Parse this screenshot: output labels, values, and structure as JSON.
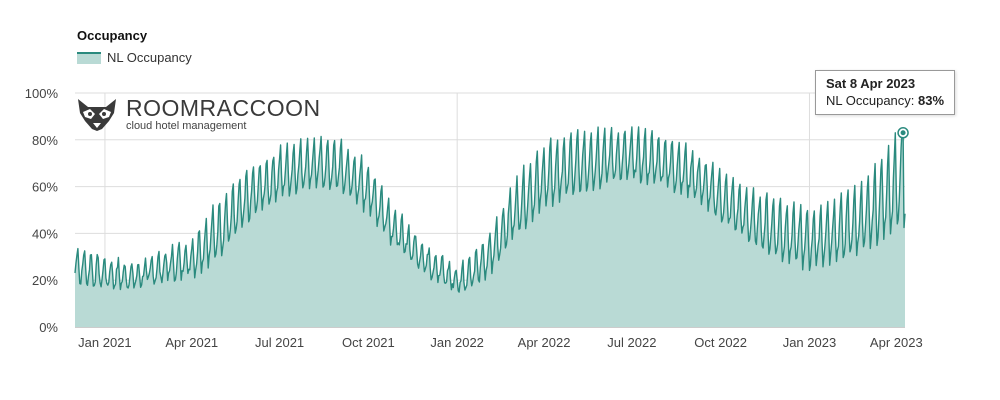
{
  "chart_data": {
    "type": "area",
    "title": "Occupancy",
    "legend": {
      "placement": "top-left",
      "series_name": "NL Occupancy"
    },
    "color": "#2a8a7e",
    "fill_color": "#b9dad5",
    "xlabel": "",
    "ylabel": "",
    "ylim": [
      0,
      100
    ],
    "y_ticks": [
      "0%",
      "20%",
      "40%",
      "60%",
      "80%",
      "100%"
    ],
    "x_ticks": [
      "Jan 2021",
      "Apr 2021",
      "Jul 2021",
      "Oct 2021",
      "Jan 2022",
      "Apr 2022",
      "Jul 2022",
      "Oct 2022",
      "Jan 2023",
      "Apr 2023"
    ],
    "x_range": [
      "2020-12-01",
      "2023-04-10"
    ],
    "grid": true,
    "series": [
      {
        "name": "NL Occupancy",
        "x": [
          "2020-12-01",
          "2021-01-01",
          "2021-02-01",
          "2021-03-01",
          "2021-04-01",
          "2021-05-01",
          "2021-06-01",
          "2021-07-01",
          "2021-08-01",
          "2021-09-01",
          "2021-10-01",
          "2021-11-01",
          "2021-12-01",
          "2022-01-01",
          "2022-02-01",
          "2022-03-01",
          "2022-04-01",
          "2022-05-01",
          "2022-06-01",
          "2022-07-01",
          "2022-08-01",
          "2022-09-01",
          "2022-10-01",
          "2022-11-01",
          "2022-12-01",
          "2023-01-01",
          "2023-02-01",
          "2023-03-01",
          "2023-04-01"
        ],
        "low": [
          18,
          16,
          17,
          19,
          21,
          30,
          45,
          55,
          60,
          58,
          48,
          32,
          22,
          14,
          20,
          38,
          50,
          55,
          60,
          62,
          60,
          55,
          45,
          35,
          28,
          24,
          28,
          32,
          40
        ],
        "high": [
          35,
          30,
          26,
          32,
          38,
          55,
          68,
          76,
          80,
          79,
          70,
          48,
          35,
          25,
          38,
          62,
          78,
          83,
          85,
          84,
          82,
          76,
          66,
          58,
          55,
          50,
          55,
          62,
          83
        ]
      }
    ],
    "tooltip": {
      "date": "Sat 8 Apr 2023",
      "label": "NL Occupancy:",
      "value": "83%"
    }
  },
  "logo": {
    "name": "ROOMRACCOON",
    "tagline": "cloud hotel management"
  }
}
